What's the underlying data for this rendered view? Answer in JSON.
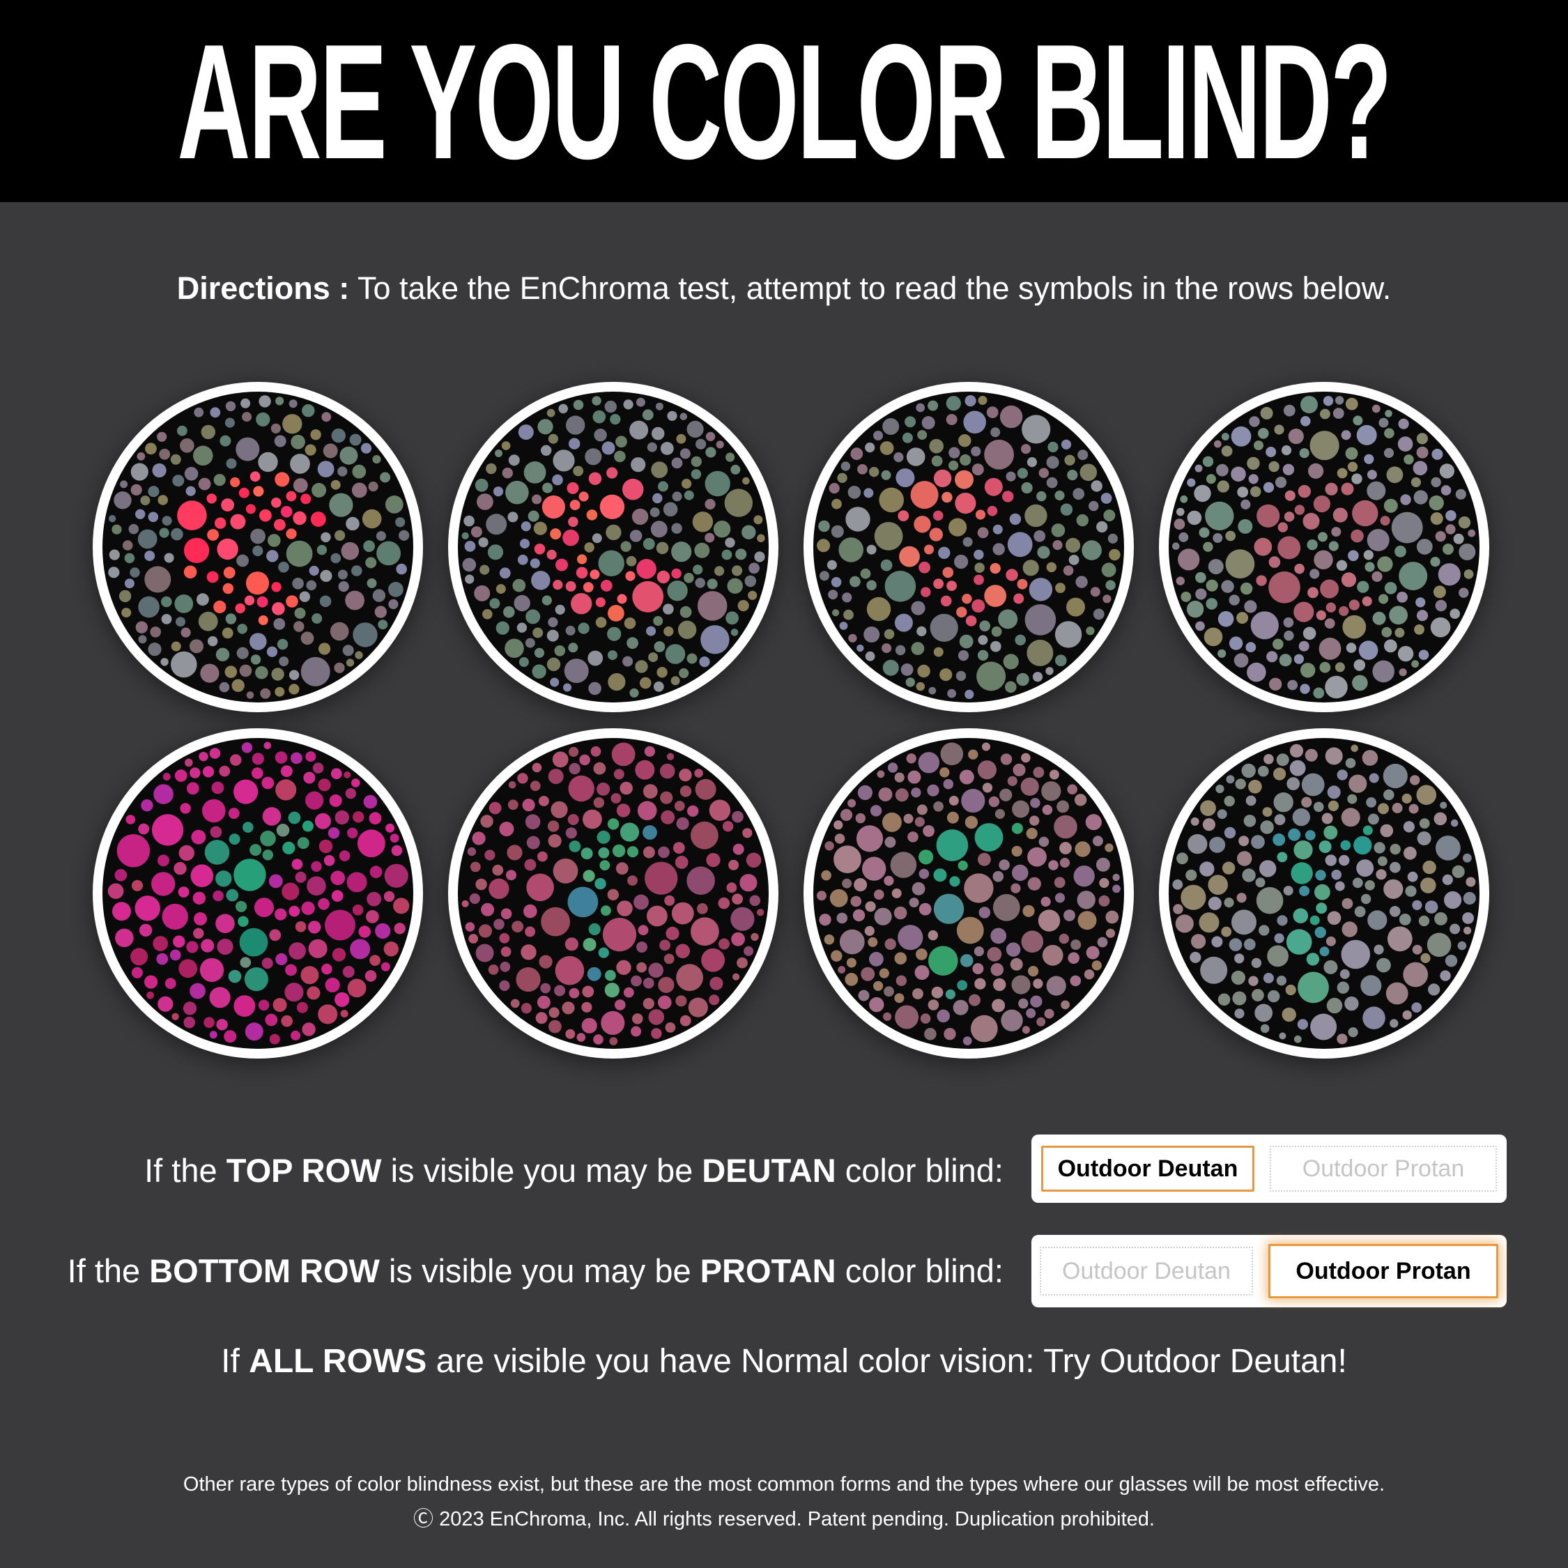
{
  "header": {
    "title": "ARE YOU COLOR BLIND?"
  },
  "directions": {
    "label": "Directions :",
    "text": " To take the EnChroma test, attempt to read the symbols in the rows below."
  },
  "plates": [
    {
      "name": "deutan-plate-1",
      "row": "top",
      "symbol": "c-ring",
      "bg_colors": [
        "#6f6f79",
        "#7b7c5f",
        "#8486a8",
        "#5f7e72",
        "#8a6c7a",
        "#6a7f67",
        "#7a7282",
        "#93959d",
        "#6a8577",
        "#887e58",
        "#5e6e75",
        "#7e6a6e"
      ],
      "symbol_colors": [
        "#ff3b5f",
        "#ff2a55",
        "#fb4a6e",
        "#ff6653",
        "#f62e6b",
        "#ff4f75",
        "#ff5a4f"
      ]
    },
    {
      "name": "deutan-plate-2",
      "row": "top",
      "symbol": "c-ring",
      "bg_colors": [
        "#70707a",
        "#7b7c5f",
        "#8385a6",
        "#5f7e72",
        "#8a6c7a",
        "#6a7f67",
        "#7a7282",
        "#90929b",
        "#6a8577",
        "#867c57"
      ],
      "symbol_colors": [
        "#f0456a",
        "#e94f70",
        "#f65f63",
        "#e73a6b",
        "#ff5f6b",
        "#e2516e",
        "#f2694f"
      ]
    },
    {
      "name": "deutan-plate-3",
      "row": "top",
      "symbol": "c-ring",
      "bg_colors": [
        "#73737d",
        "#7d7e61",
        "#8486a8",
        "#617f74",
        "#8b6d7b",
        "#6b8068",
        "#7b7383",
        "#94969e",
        "#6b8678",
        "#897f59"
      ],
      "symbol_colors": [
        "#e05a70",
        "#d9536c",
        "#e4685f",
        "#d4496a",
        "#e87263",
        "#dd5f75"
      ]
    },
    {
      "name": "deutan-plate-4",
      "row": "top",
      "symbol": "c-ring",
      "bg_colors": [
        "#7d7d87",
        "#85866b",
        "#8d8fae",
        "#6b8a7e",
        "#927684",
        "#738a70",
        "#837b8b",
        "#9a9ca4",
        "#748f81",
        "#8f8663",
        "#9487a0"
      ],
      "symbol_colors": [
        "#b56b79",
        "#ad5f6f",
        "#c06d7c",
        "#a85c6b",
        "#b86472"
      ]
    },
    {
      "name": "protan-plate-1",
      "row": "bottom",
      "symbol": "flag-arrow",
      "bg_colors": [
        "#c62385",
        "#cf2f8f",
        "#b51f75",
        "#d62a92",
        "#a92a6f",
        "#bb3f63",
        "#b22ba0",
        "#c13a79",
        "#d0268a",
        "#ad2160"
      ],
      "symbol_colors": [
        "#1d8a72",
        "#2a9077",
        "#3a8f68",
        "#6e8f7c",
        "#35967f",
        "#27a07a"
      ]
    },
    {
      "name": "protan-plate-2",
      "row": "bottom",
      "symbol": "flag-arrow",
      "bg_colors": [
        "#b04a6e",
        "#a84168",
        "#9d3f62",
        "#b45573",
        "#8f4a70",
        "#a7586b",
        "#b64f7e",
        "#994a5f"
      ],
      "symbol_colors": [
        "#2f8f72",
        "#3f9e6b",
        "#3f809b",
        "#45a07a",
        "#2f9a85",
        "#58a878"
      ]
    },
    {
      "name": "protan-plate-3",
      "row": "bottom",
      "symbol": "flag-arrow",
      "bg_colors": [
        "#9a6a7d",
        "#8f5f70",
        "#a0787f",
        "#8a6b8c",
        "#9b7a62",
        "#8f7585",
        "#a5708a",
        "#7f6a70",
        "#a8818b"
      ],
      "symbol_colors": [
        "#2f8f7e",
        "#3f9a8a",
        "#36a06b",
        "#4a8f95",
        "#2f9f82"
      ]
    },
    {
      "name": "protan-plate-4",
      "row": "bottom",
      "symbol": "flag-arrow",
      "bg_colors": [
        "#8b8c96",
        "#80897f",
        "#9b7f86",
        "#8887a2",
        "#7f8a88",
        "#93876b",
        "#9590a2",
        "#7b848f",
        "#a08b92"
      ],
      "symbol_colors": [
        "#2f9f82",
        "#4aa88e",
        "#3f8f9c",
        "#57a484",
        "#2a9a90"
      ]
    }
  ],
  "results": [
    {
      "seg1": "If the ",
      "bold1": "TOP ROW",
      "seg2": " is visible you may be ",
      "bold2": "DEUTAN",
      "seg3": " color blind:",
      "buttons": [
        {
          "label": "Outdoor Deutan",
          "state": "selected"
        },
        {
          "label": "Outdoor Protan",
          "state": "unselected"
        }
      ]
    },
    {
      "seg1": "If the ",
      "bold1": "BOTTOM ROW",
      "seg2": " is visible you may be ",
      "bold2": "PROTAN",
      "seg3": " color blind:",
      "buttons": [
        {
          "label": "Outdoor Deutan",
          "state": "unselected"
        },
        {
          "label": "Outdoor Protan",
          "state": "selected"
        }
      ]
    }
  ],
  "normal_line": {
    "seg1": "If ",
    "bold": "ALL ROWS",
    "seg2": " are visible you have Normal color vision: Try Outdoor Deutan!"
  },
  "footer": {
    "line1": "Other rare types of color blindness exist, but these are the most common forms and the types where our glasses will be most effective.",
    "line2": "Ⓒ 2023 EnChroma, Inc. All rights reserved. Patent pending. Duplication prohibited."
  },
  "colors": {
    "page_bg": "#3a3a3c",
    "header_bg": "#000000",
    "text": "#ffffff",
    "accent_orange": "#e6973f",
    "inactive_gray": "#c5c5c5",
    "card_bg": "#ffffff",
    "plate_bg": "#0a0a0a",
    "plate_ring": "#ffffff"
  }
}
